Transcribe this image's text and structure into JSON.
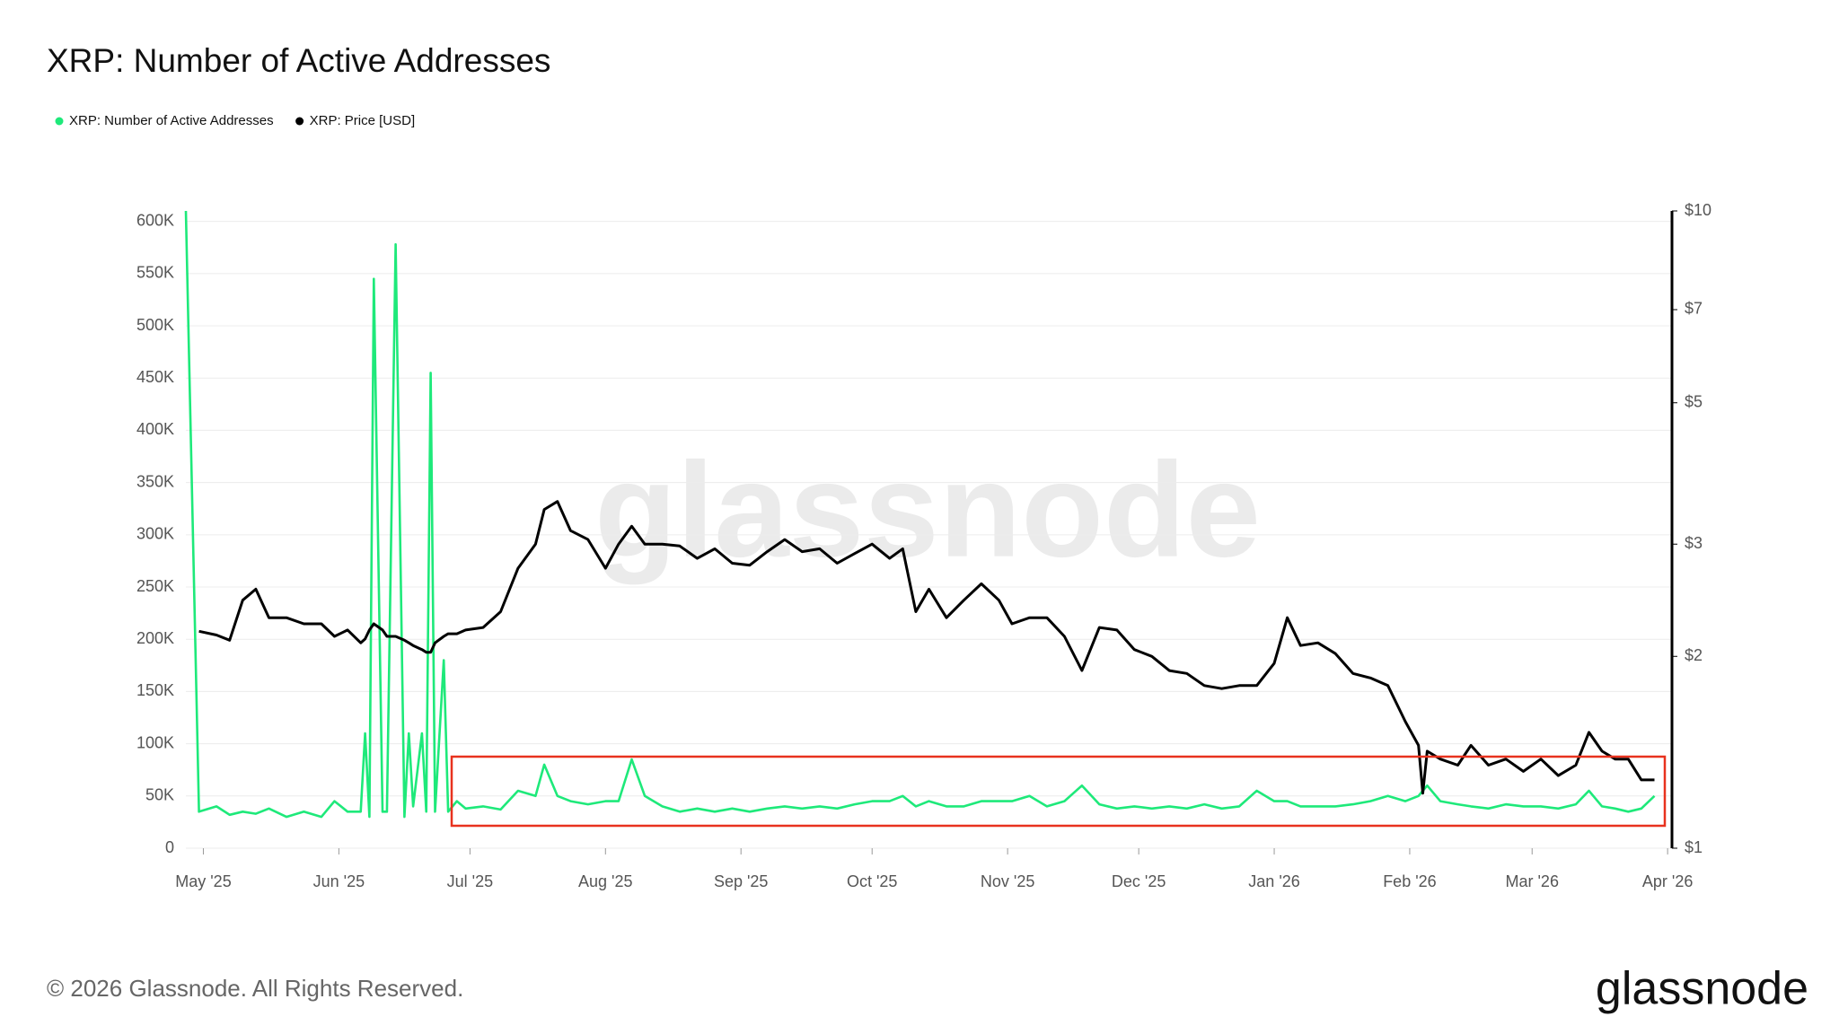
{
  "chart_data": {
    "type": "line",
    "title": "XRP: Number of Active Addresses",
    "x": [
      -4,
      -1,
      3,
      6,
      9,
      12,
      15,
      19,
      23,
      27,
      30,
      33,
      36,
      37,
      38,
      39,
      41,
      42,
      44,
      46,
      47,
      48,
      50,
      51,
      52,
      53,
      55,
      56,
      58,
      60,
      64,
      68,
      72,
      76,
      78,
      81,
      84,
      88,
      92,
      95,
      98,
      101,
      105,
      109,
      113,
      117,
      121,
      125,
      129,
      133,
      137,
      141,
      145,
      149,
      153,
      157,
      160,
      163,
      166,
      170,
      174,
      178,
      182,
      185,
      189,
      193,
      197,
      201,
      205,
      209,
      213,
      217,
      221,
      225,
      229,
      233,
      237,
      241,
      245,
      248,
      251,
      255,
      259,
      263,
      267,
      271,
      275,
      278,
      279,
      280,
      283,
      287,
      290,
      294,
      298,
      302,
      306,
      310,
      314,
      317,
      320,
      323,
      326,
      329,
      332
    ],
    "series": [
      {
        "name": "XRP: Number of Active Addresses",
        "color": "#1ee97a",
        "axis": "y",
        "values": [
          610000,
          35000,
          40000,
          32000,
          35000,
          33000,
          38000,
          30000,
          35000,
          30000,
          45000,
          35000,
          35000,
          110000,
          30000,
          545000,
          35000,
          35000,
          578000,
          30000,
          110000,
          40000,
          110000,
          35000,
          455000,
          35000,
          180000,
          35000,
          45000,
          38000,
          40000,
          37000,
          55000,
          50000,
          80000,
          50000,
          45000,
          42000,
          45000,
          45000,
          85000,
          50000,
          40000,
          35000,
          38000,
          35000,
          38000,
          35000,
          38000,
          40000,
          38000,
          40000,
          38000,
          42000,
          45000,
          45000,
          50000,
          40000,
          45000,
          40000,
          40000,
          45000,
          45000,
          45000,
          50000,
          40000,
          45000,
          60000,
          42000,
          38000,
          40000,
          38000,
          40000,
          38000,
          42000,
          38000,
          40000,
          55000,
          45000,
          45000,
          40000,
          40000,
          40000,
          42000,
          45000,
          50000,
          45000,
          50000,
          55000,
          60000,
          45000,
          42000,
          40000,
          38000,
          42000,
          40000,
          40000,
          38000,
          42000,
          55000,
          40000,
          38000,
          35000,
          38000,
          50000
        ]
      },
      {
        "name": "XRP: Price [USD]",
        "color": "#000000",
        "axis": "y2",
        "values": [
          null,
          2.19,
          2.16,
          2.12,
          2.45,
          2.55,
          2.3,
          2.3,
          2.25,
          2.25,
          2.15,
          2.2,
          2.1,
          2.13,
          2.2,
          2.25,
          2.2,
          2.15,
          2.15,
          2.12,
          2.1,
          2.08,
          2.05,
          2.03,
          2.03,
          2.1,
          2.15,
          2.17,
          2.17,
          2.2,
          2.22,
          2.35,
          2.75,
          3.0,
          3.4,
          3.5,
          3.15,
          3.05,
          2.75,
          3.0,
          3.2,
          3.0,
          3.0,
          2.98,
          2.85,
          2.95,
          2.8,
          2.78,
          2.92,
          3.05,
          2.92,
          2.95,
          2.8,
          2.9,
          3.0,
          2.85,
          2.95,
          2.35,
          2.55,
          2.3,
          2.45,
          2.6,
          2.45,
          2.25,
          2.3,
          2.3,
          2.15,
          1.9,
          2.22,
          2.2,
          2.05,
          2.0,
          1.9,
          1.88,
          1.8,
          1.78,
          1.8,
          1.8,
          1.95,
          2.3,
          2.08,
          2.1,
          2.02,
          1.88,
          1.85,
          1.8,
          1.58,
          1.45,
          1.22,
          1.42,
          1.38,
          1.35,
          1.45,
          1.35,
          1.38,
          1.32,
          1.38,
          1.3,
          1.35,
          1.52,
          1.42,
          1.38,
          1.38,
          1.28,
          1.28
        ]
      }
    ],
    "xlim": [
      -4,
      336
    ],
    "xticks": [
      {
        "value": 0,
        "label": "May '25"
      },
      {
        "value": 31,
        "label": "Jun '25"
      },
      {
        "value": 61,
        "label": "Jul '25"
      },
      {
        "value": 92,
        "label": "Aug '25"
      },
      {
        "value": 123,
        "label": "Sep '25"
      },
      {
        "value": 153,
        "label": "Oct '25"
      },
      {
        "value": 184,
        "label": "Nov '25"
      },
      {
        "value": 214,
        "label": "Dec '25"
      },
      {
        "value": 245,
        "label": "Jan '26"
      },
      {
        "value": 276,
        "label": "Feb '26"
      },
      {
        "value": 304,
        "label": "Mar '26"
      },
      {
        "value": 335,
        "label": "Apr '26"
      }
    ],
    "ylim": [
      0,
      610000
    ],
    "yticks": [
      0,
      {
        "value": 50000,
        "label": "50K"
      },
      {
        "value": 100000,
        "label": "100K"
      },
      {
        "value": 150000,
        "label": "150K"
      },
      {
        "value": 200000,
        "label": "200K"
      },
      {
        "value": 250000,
        "label": "250K"
      },
      {
        "value": 300000,
        "label": "300K"
      },
      {
        "value": 350000,
        "label": "350K"
      },
      {
        "value": 400000,
        "label": "400K"
      },
      {
        "value": 450000,
        "label": "450K"
      },
      {
        "value": 500000,
        "label": "500K"
      },
      {
        "value": 550000,
        "label": "550K"
      },
      {
        "value": 600000,
        "label": "600K"
      }
    ],
    "y2lim": [
      1,
      10
    ],
    "y2ticks": [
      {
        "value": 1,
        "label": "$1"
      },
      {
        "value": 2,
        "label": "$2"
      },
      {
        "value": 3,
        "label": "$3"
      },
      {
        "value": 5,
        "label": "$5"
      },
      {
        "value": 7,
        "label": "$7"
      },
      {
        "value": 10,
        "label": "$10"
      }
    ],
    "y2scale": "log",
    "grid": true,
    "legend": "top-left",
    "watermark": "glassnode",
    "footer": "© 2026 Glassnode. All Rights Reserved.",
    "logo": "glassnode"
  }
}
